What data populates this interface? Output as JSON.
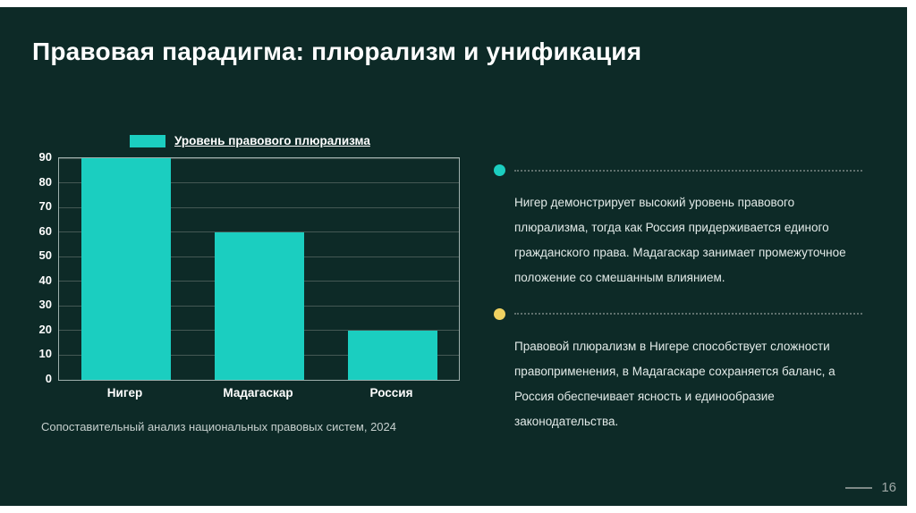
{
  "slide": {
    "title": "Правовая парадигма: плюрализм и унификация",
    "caption": "Сопоставительный анализ национальных правовых систем, 2024",
    "page_number": "16",
    "colors": {
      "background": "#0d2a27",
      "accent_teal": "#1bcec0",
      "accent_yellow": "#efd161"
    }
  },
  "chart_data": {
    "type": "bar",
    "legend": "Уровень правового плюрализма",
    "categories": [
      "Нигер",
      "Мадагаскар",
      "Россия"
    ],
    "values": [
      90,
      60,
      20
    ],
    "ylim": [
      0,
      90
    ],
    "yticks": [
      0,
      10,
      20,
      30,
      40,
      50,
      60,
      70,
      80,
      90
    ],
    "grid": true,
    "bar_color": "#1bcec0",
    "title": "",
    "xlabel": "",
    "ylabel": ""
  },
  "notes": [
    {
      "bullet_color": "#1bcec0",
      "text": "Нигер демонстрирует высокий уровень правового плюрализма, тогда как Россия придерживается единого гражданского права. Мадагаскар занимает промежуточное положение со смешанным влиянием."
    },
    {
      "bullet_color": "#efd161",
      "text": "Правовой плюрализм в Нигере способствует сложности правоприменения, в Мадагаскаре сохраняется баланс, а Россия обеспечивает ясность и единообразие законодательства."
    }
  ]
}
